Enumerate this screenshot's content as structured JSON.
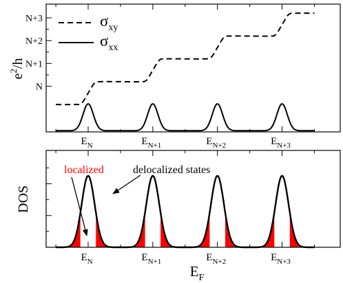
{
  "chart_data": [
    {
      "type": "line",
      "ylabel": "e2/h",
      "ylabel_main": "e",
      "ylabel_sup": "2",
      "ylabel_tail": "/h",
      "yticks": [
        {
          "text": "N",
          "value": 0
        },
        {
          "text": "N+1",
          "value": 1
        },
        {
          "text": "N+2",
          "value": 2
        },
        {
          "text": "N+3",
          "value": 3
        }
      ],
      "xticks": [
        {
          "main": "E",
          "sub": "N",
          "value": 1
        },
        {
          "main": "E",
          "sub": "N+1",
          "value": 2
        },
        {
          "main": "E",
          "sub": "N+2",
          "value": 3
        },
        {
          "main": "E",
          "sub": "N+3",
          "value": 4
        }
      ],
      "xlim": [
        0.35,
        4.9
      ],
      "ylim": [
        -2.0,
        3.6
      ],
      "legend_position": "top-left",
      "series": [
        {
          "name": "σxy",
          "name_main": "σ",
          "name_sub": "xy",
          "style": "dashed",
          "x": [
            0.5,
            0.8,
            0.9,
            1.0,
            1.1,
            1.2,
            1.5,
            1.8,
            1.9,
            2.0,
            2.1,
            2.2,
            2.5,
            2.8,
            2.9,
            3.0,
            3.1,
            3.2,
            3.5,
            3.8,
            3.9,
            4.0,
            4.1,
            4.2,
            4.5
          ],
          "y": [
            -0.8,
            -0.8,
            -0.74,
            -0.3,
            0.14,
            0.2,
            0.2,
            0.2,
            0.26,
            0.7,
            1.14,
            1.2,
            1.2,
            1.2,
            1.26,
            1.7,
            2.14,
            2.2,
            2.2,
            2.2,
            2.26,
            2.7,
            3.14,
            3.2,
            3.2
          ]
        },
        {
          "name": "σxx",
          "name_main": "σ",
          "name_sub": "xx",
          "style": "solid",
          "peak_centers": [
            1,
            2,
            3,
            4
          ],
          "peak_height": 1.18,
          "peak_width": 0.08,
          "x_range": [
            0.5,
            4.5
          ],
          "baseline": -1.95
        }
      ]
    },
    {
      "type": "area",
      "ylabel": "DOS",
      "xlabel": "EF",
      "xlabel_main": "E",
      "xlabel_sub": "F",
      "xticks": [
        {
          "main": "E",
          "sub": "N",
          "value": 1
        },
        {
          "main": "E",
          "sub": "N+1",
          "value": 2
        },
        {
          "main": "E",
          "sub": "N+2",
          "value": 3
        },
        {
          "main": "E",
          "sub": "N+3",
          "value": 4
        }
      ],
      "xlim": [
        0.35,
        4.9
      ],
      "ylim": [
        0,
        1.22
      ],
      "peak_centers": [
        1,
        2,
        3,
        4
      ],
      "peak_height": 0.9,
      "peak_width": 0.1,
      "x_range": [
        0.5,
        4.5
      ],
      "localized_fill_color": "#ff0000",
      "localized_bands": [
        [
          -0.3,
          -0.12
        ],
        [
          0.12,
          0.3
        ]
      ],
      "annotations": [
        {
          "text": "localized",
          "color": "#ff0000"
        },
        {
          "text": "delocalized states",
          "color": "#000000"
        }
      ]
    }
  ]
}
